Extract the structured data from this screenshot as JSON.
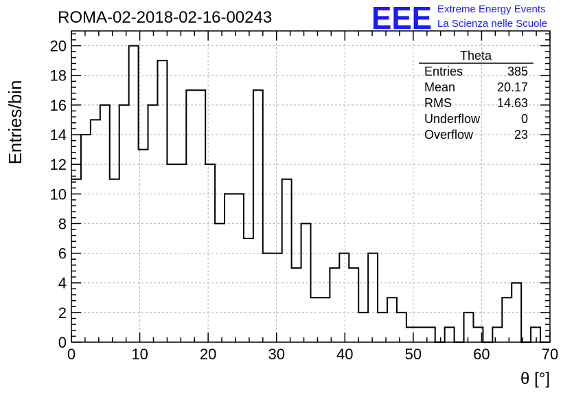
{
  "header": {
    "run_title": "ROMA-02-2018-02-16-00243",
    "logo_letters": "EEE",
    "logo_line1": "Extreme Energy Events",
    "logo_line2": "La Scienza nelle Scuole",
    "logo_color": "#1a1aff"
  },
  "stats_box": {
    "title": "Theta",
    "rows": [
      {
        "label": "Entries",
        "value": "385"
      },
      {
        "label": "Mean",
        "value": "20.17"
      },
      {
        "label": "RMS",
        "value": "14.63"
      },
      {
        "label": "Underflow",
        "value": "0"
      },
      {
        "label": "Overflow",
        "value": "23"
      }
    ]
  },
  "chart_data": {
    "type": "bar",
    "style": "step-histogram",
    "xlabel": "θ [°]",
    "ylabel": "Entries/bin",
    "xlim": [
      0,
      70
    ],
    "ylim": [
      0,
      21
    ],
    "bin_width": 1.4,
    "grid": true,
    "x_ticks": [
      0,
      10,
      20,
      30,
      40,
      50,
      60,
      70
    ],
    "y_ticks": [
      0,
      2,
      4,
      6,
      8,
      10,
      12,
      14,
      16,
      18,
      20
    ],
    "values": [
      11,
      14,
      15,
      16,
      11,
      16,
      20,
      13,
      16,
      19,
      12,
      12,
      17,
      17,
      12,
      8,
      10,
      10,
      7,
      17,
      6,
      6,
      11,
      5,
      8,
      3,
      3,
      5,
      6,
      5,
      2,
      6,
      2,
      3,
      2,
      1,
      1,
      1,
      0,
      1,
      0,
      2,
      1,
      0,
      1,
      3,
      4,
      0,
      1,
      0
    ]
  }
}
